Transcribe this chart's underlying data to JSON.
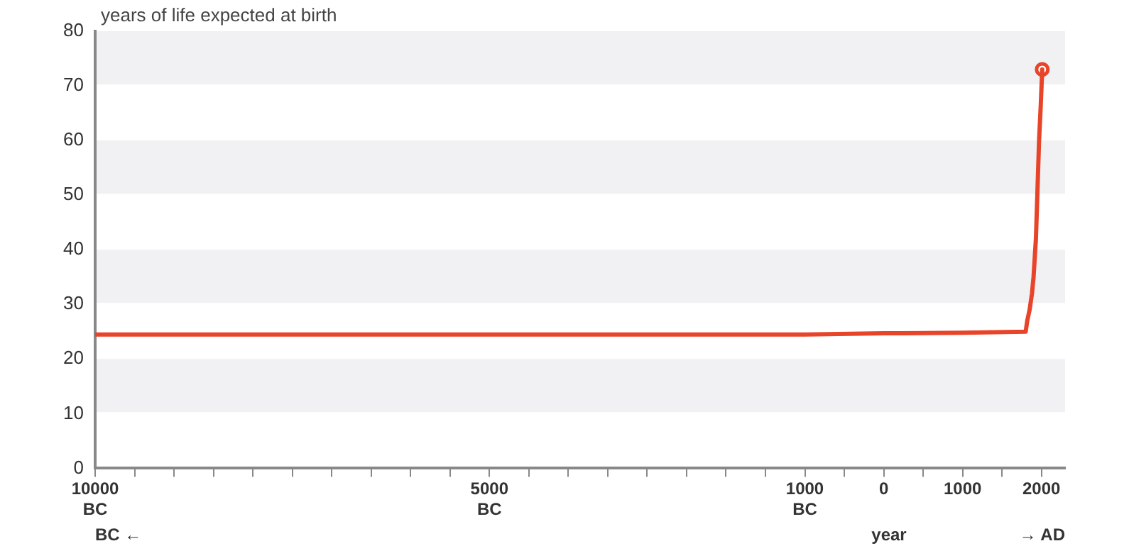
{
  "chart_data": {
    "type": "line",
    "ylabel": "years of life expected at birth",
    "xlabel": "year",
    "annotations": [
      "BC ←",
      "→ AD"
    ],
    "x": [
      -10000,
      -5000,
      -1000,
      0,
      1000,
      1800,
      1820,
      1850,
      1880,
      1900,
      1930,
      1950,
      1970,
      1990,
      2010
    ],
    "series": [
      {
        "color": "#e8442a",
        "values": [
          24.5,
          24.5,
          24.5,
          24.7,
          24.8,
          25,
          27,
          29,
          32,
          35,
          42,
          51,
          60,
          66,
          73
        ]
      },
      {
        "type": "scatter",
        "marker": "circle",
        "color": "#e8442a",
        "x": [
          2010
        ],
        "values": [
          73
        ]
      }
    ],
    "xlim": [
      -10000,
      2300
    ],
    "xticks": [
      {
        "value": -10000,
        "label": "10000\nBC"
      },
      {
        "value": -9500,
        "label": null
      },
      {
        "value": -9000,
        "label": null
      },
      {
        "value": -8500,
        "label": null
      },
      {
        "value": -8000,
        "label": null
      },
      {
        "value": -7500,
        "label": null
      },
      {
        "value": -7000,
        "label": null
      },
      {
        "value": -6500,
        "label": null
      },
      {
        "value": -6000,
        "label": null
      },
      {
        "value": -5500,
        "label": null
      },
      {
        "value": -5000,
        "label": "5000\nBC"
      },
      {
        "value": -4500,
        "label": null
      },
      {
        "value": -4000,
        "label": null
      },
      {
        "value": -3500,
        "label": null
      },
      {
        "value": -3000,
        "label": null
      },
      {
        "value": -2500,
        "label": null
      },
      {
        "value": -2000,
        "label": null
      },
      {
        "value": -1500,
        "label": null
      },
      {
        "value": -1000,
        "label": "1000\nBC"
      },
      {
        "value": -500,
        "label": null
      },
      0,
      {
        "value": 500,
        "label": null
      },
      1000,
      {
        "value": 1500,
        "label": null
      },
      2000
    ],
    "ylim": [
      0,
      80
    ],
    "yticks": [
      0,
      10,
      20,
      30,
      40,
      50,
      60,
      70,
      80
    ],
    "line_style": "solid",
    "legend": false
  }
}
